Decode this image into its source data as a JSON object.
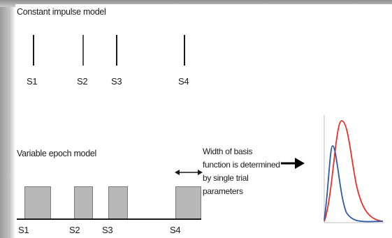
{
  "top_panel": {
    "title": "Constant impulse model",
    "events": [
      {
        "label": "S1"
      },
      {
        "label": "S2"
      },
      {
        "label": "S3"
      },
      {
        "label": "S4"
      }
    ]
  },
  "bottom_panel": {
    "title": "Variable epoch model",
    "events": [
      {
        "label": "S1"
      },
      {
        "label": "S2"
      },
      {
        "label": "S3"
      },
      {
        "label": "S4"
      }
    ]
  },
  "annotation": {
    "lines": [
      "Width of basis",
      "function is determined",
      "by single trial",
      "parameters"
    ]
  },
  "response_plot": {
    "series_colors": {
      "wide": "#e8302a",
      "narrow": "#2f5aa8"
    }
  }
}
